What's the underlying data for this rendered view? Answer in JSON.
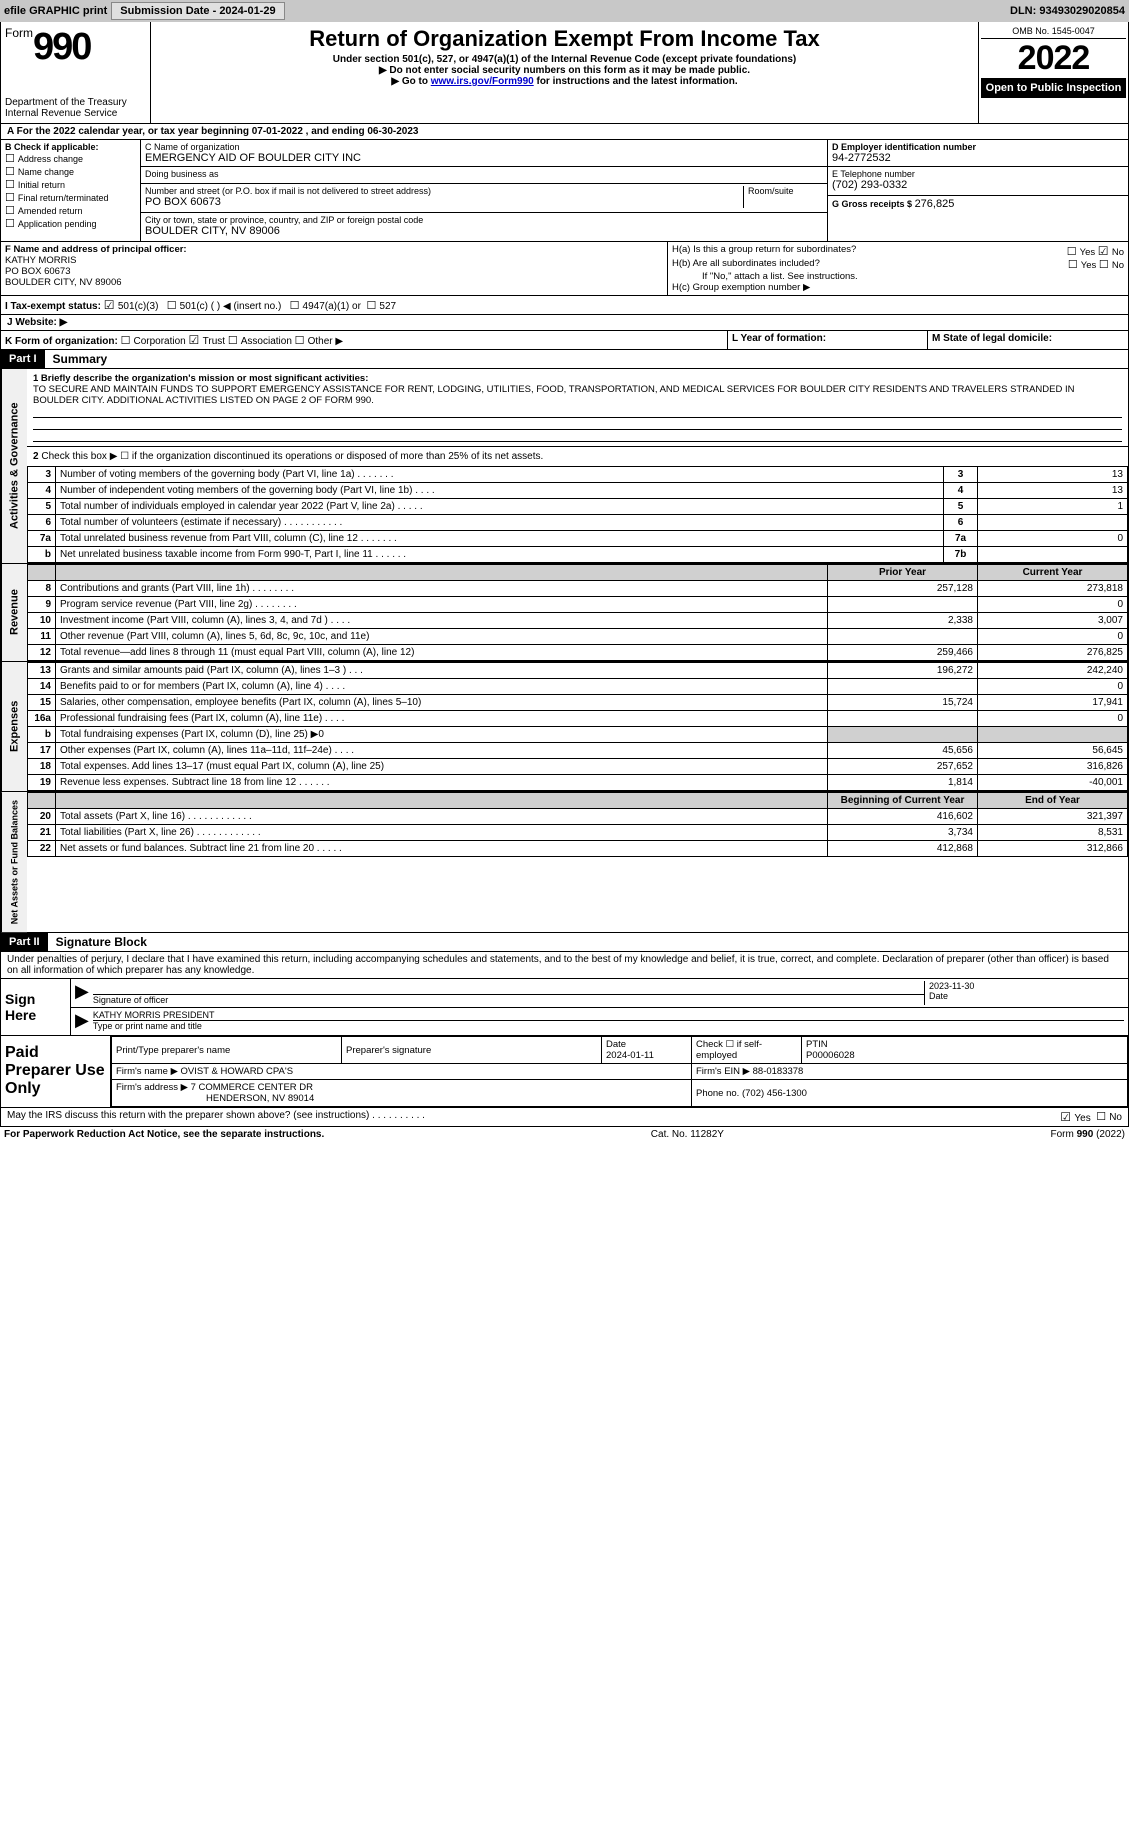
{
  "topbar": {
    "efile": "efile GRAPHIC print",
    "submission_label": "Submission Date - 2024-01-29",
    "dln": "DLN: 93493029020854"
  },
  "header": {
    "form_word": "Form",
    "form_number": "990",
    "title": "Return of Organization Exempt From Income Tax",
    "subtitle": "Under section 501(c), 527, or 4947(a)(1) of the Internal Revenue Code (except private foundations)",
    "warn": "Do not enter social security numbers on this form as it may be made public.",
    "goto_prefix": "Go to ",
    "goto_link": "www.irs.gov/Form990",
    "goto_suffix": " for instructions and the latest information.",
    "dept": "Department of the Treasury",
    "irs": "Internal Revenue Service",
    "omb": "OMB No. 1545-0047",
    "year": "2022",
    "open": "Open to Public Inspection"
  },
  "line_a": "For the 2022 calendar year, or tax year beginning 07-01-2022    , and ending 06-30-2023",
  "box_b": {
    "label": "B Check if applicable:",
    "items": [
      "Address change",
      "Name change",
      "Initial return",
      "Final return/terminated",
      "Amended return",
      "Application pending"
    ]
  },
  "box_c": {
    "label": "C Name of organization",
    "name": "EMERGENCY AID OF BOULDER CITY INC",
    "dba_label": "Doing business as",
    "dba": "",
    "street_label": "Number and street (or P.O. box if mail is not delivered to street address)",
    "room_label": "Room/suite",
    "street": "PO BOX 60673",
    "city_label": "City or town, state or province, country, and ZIP or foreign postal code",
    "city": "BOULDER CITY, NV  89006"
  },
  "box_d": {
    "label": "D Employer identification number",
    "ein": "94-2772532"
  },
  "box_e": {
    "label": "E Telephone number",
    "phone": "(702) 293-0332"
  },
  "box_g": {
    "label": "G Gross receipts $",
    "amount": "276,825"
  },
  "box_f": {
    "label": "F  Name and address of principal officer:",
    "name": "KATHY MORRIS",
    "addr1": "PO BOX 60673",
    "addr2": "BOULDER CITY, NV  89006"
  },
  "box_h": {
    "a_label": "H(a)  Is this a group return for subordinates?",
    "a_yes": "Yes",
    "a_no": "No",
    "b_label": "H(b)  Are all subordinates included?",
    "b_yes": "Yes",
    "b_no": "No",
    "b_note": "If \"No,\" attach a list. See instructions.",
    "c_label": "H(c)  Group exemption number ▶"
  },
  "box_i": {
    "label": "I    Tax-exempt status:",
    "opt1": "501(c)(3)",
    "opt2": "501(c) (   ) ◀ (insert no.)",
    "opt3": "4947(a)(1) or",
    "opt4": "527"
  },
  "box_j": {
    "label": "J    Website: ▶"
  },
  "box_k": {
    "label": "K Form of organization:",
    "opts": [
      "Corporation",
      "Trust",
      "Association",
      "Other ▶"
    ]
  },
  "box_l": {
    "label": "L Year of formation:"
  },
  "box_m": {
    "label": "M State of legal domicile:"
  },
  "part1": {
    "hdr": "Part I",
    "title": "Summary",
    "q1_label": "1  Briefly describe the organization's mission or most significant activities:",
    "q1_text": "TO SECURE AND MAINTAIN FUNDS TO SUPPORT EMERGENCY ASSISTANCE FOR RENT, LODGING, UTILITIES, FOOD, TRANSPORTATION, AND MEDICAL SERVICES FOR BOULDER CITY RESIDENTS AND TRAVELERS STRANDED IN BOULDER CITY. ADDITIONAL ACTIVITIES LISTED ON PAGE 2 OF FORM 990.",
    "q2": "Check this box ▶ ☐  if the organization discontinued its operations or disposed of more than 25% of its net assets.",
    "vtab_ag": "Activities & Governance",
    "vtab_rev": "Revenue",
    "vtab_exp": "Expenses",
    "vtab_na": "Net Assets or Fund Balances",
    "prior_hdr": "Prior Year",
    "current_hdr": "Current Year",
    "boy_hdr": "Beginning of Current Year",
    "eoy_hdr": "End of Year",
    "gov": [
      {
        "n": "3",
        "d": "Number of voting members of the governing body (Part VI, line 1a)   .    .    .    .    .    .    .",
        "b": "3",
        "v": "13"
      },
      {
        "n": "4",
        "d": "Number of independent voting members of the governing body (Part VI, line 1b)    .    .    .    .",
        "b": "4",
        "v": "13"
      },
      {
        "n": "5",
        "d": "Total number of individuals employed in calendar year 2022 (Part V, line 2a)   .    .    .    .    .",
        "b": "5",
        "v": "1"
      },
      {
        "n": "6",
        "d": "Total number of volunteers (estimate if necessary)    .    .    .    .    .    .    .    .    .    .    .",
        "b": "6",
        "v": ""
      },
      {
        "n": "7a",
        "d": "Total unrelated business revenue from Part VIII, column (C), line 12   .    .    .    .    .    .    .",
        "b": "7a",
        "v": "0"
      },
      {
        "n": "b",
        "d": "Net unrelated business taxable income from Form 990-T, Part I, line 11    .    .    .    .    .    .",
        "b": "7b",
        "v": ""
      }
    ],
    "rev": [
      {
        "n": "8",
        "d": "Contributions and grants (Part VIII, line 1h)    .    .    .    .    .    .    .    .",
        "p": "257,128",
        "c": "273,818"
      },
      {
        "n": "9",
        "d": "Program service revenue (Part VIII, line 2g)    .    .    .    .    .    .    .    .",
        "p": "",
        "c": "0"
      },
      {
        "n": "10",
        "d": "Investment income (Part VIII, column (A), lines 3, 4, and 7d )    .    .    .    .",
        "p": "2,338",
        "c": "3,007"
      },
      {
        "n": "11",
        "d": "Other revenue (Part VIII, column (A), lines 5, 6d, 8c, 9c, 10c, and 11e)",
        "p": "",
        "c": "0"
      },
      {
        "n": "12",
        "d": "Total revenue—add lines 8 through 11 (must equal Part VIII, column (A), line 12)",
        "p": "259,466",
        "c": "276,825"
      }
    ],
    "exp": [
      {
        "n": "13",
        "d": "Grants and similar amounts paid (Part IX, column (A), lines 1–3 )   .    .    .",
        "p": "196,272",
        "c": "242,240"
      },
      {
        "n": "14",
        "d": "Benefits paid to or for members (Part IX, column (A), line 4)   .    .    .    .",
        "p": "",
        "c": "0"
      },
      {
        "n": "15",
        "d": "Salaries, other compensation, employee benefits (Part IX, column (A), lines 5–10)",
        "p": "15,724",
        "c": "17,941"
      },
      {
        "n": "16a",
        "d": "Professional fundraising fees (Part IX, column (A), line 11e)   .    .    .    .",
        "p": "",
        "c": "0"
      },
      {
        "n": "b",
        "d": "Total fundraising expenses (Part IX, column (D), line 25) ▶0",
        "p": "shade",
        "c": "shade"
      },
      {
        "n": "17",
        "d": "Other expenses (Part IX, column (A), lines 11a–11d, 11f–24e)    .    .    .    .",
        "p": "45,656",
        "c": "56,645"
      },
      {
        "n": "18",
        "d": "Total expenses. Add lines 13–17 (must equal Part IX, column (A), line 25)",
        "p": "257,652",
        "c": "316,826"
      },
      {
        "n": "19",
        "d": "Revenue less expenses. Subtract line 18 from line 12   .    .    .    .    .    .",
        "p": "1,814",
        "c": "-40,001"
      }
    ],
    "net": [
      {
        "n": "20",
        "d": "Total assets (Part X, line 16)   .    .    .    .    .    .    .    .    .    .    .    .",
        "p": "416,602",
        "c": "321,397"
      },
      {
        "n": "21",
        "d": "Total liabilities (Part X, line 26)   .    .    .    .    .    .    .    .    .    .    .    .",
        "p": "3,734",
        "c": "8,531"
      },
      {
        "n": "22",
        "d": "Net assets or fund balances. Subtract line 21 from line 20   .    .    .    .    .",
        "p": "412,868",
        "c": "312,866"
      }
    ]
  },
  "part2": {
    "hdr": "Part II",
    "title": "Signature Block",
    "penalties": "Under penalties of perjury, I declare that I have examined this return, including accompanying schedules and statements, and to the best of my knowledge and belief, it is true, correct, and complete. Declaration of preparer (other than officer) is based on all information of which preparer has any knowledge.",
    "sign_here": "Sign Here",
    "sig_officer": "Signature of officer",
    "sig_date": "2023-11-30",
    "date_label": "Date",
    "officer_name": "KATHY MORRIS PRESIDENT",
    "type_name": "Type or print name and title",
    "paid_label": "Paid Preparer Use Only",
    "prep_name_hdr": "Print/Type preparer's name",
    "prep_sig_hdr": "Preparer's signature",
    "prep_date_hdr": "Date",
    "prep_date": "2024-01-11",
    "prep_check": "Check ☐ if self-employed",
    "ptin_hdr": "PTIN",
    "ptin": "P00006028",
    "firm_name_label": "Firm's name      ▶",
    "firm_name": "OVIST & HOWARD CPA'S",
    "firm_ein_label": "Firm's EIN ▶",
    "firm_ein": "88-0183378",
    "firm_addr_label": "Firm's address ▶",
    "firm_addr1": "7 COMMERCE CENTER DR",
    "firm_addr2": "HENDERSON, NV  89014",
    "firm_phone_label": "Phone no.",
    "firm_phone": "(702) 456-1300",
    "discuss": "May the IRS discuss this return with the preparer shown above? (see instructions)    .    .    .    .    .    .    .    .    .    .",
    "discuss_yes": "Yes",
    "discuss_no": "No"
  },
  "footer": {
    "left": "For Paperwork Reduction Act Notice, see the separate instructions.",
    "mid": "Cat. No. 11282Y",
    "right": "Form 990 (2022)"
  },
  "colors": {
    "topbar_bg": "#c8c8c8",
    "shade": "#d0d0d0",
    "link": "#0000cc"
  }
}
